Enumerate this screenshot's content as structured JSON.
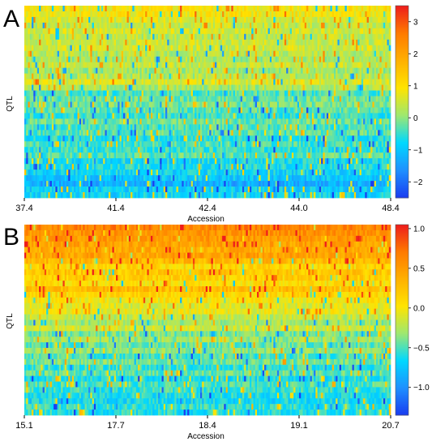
{
  "chart_data": [
    {
      "type": "heatmap",
      "panel": "A",
      "xlabel": "Accession",
      "ylabel": "QTL",
      "x_tick_labels": [
        "37.4",
        "41.4",
        "42.4",
        "44.0",
        "48.4"
      ],
      "colorbar": {
        "range": [
          -2.5,
          3.5
        ],
        "ticks": [
          3,
          2,
          1,
          0,
          -1,
          -2
        ],
        "tick_labels": [
          "3",
          "2",
          "1",
          "0",
          "−1",
          "−2"
        ]
      },
      "rows": 34,
      "columns": 200,
      "row_mean_values": [
        0.9,
        0.85,
        0.6,
        0.4,
        0.55,
        0.35,
        0.45,
        0.5,
        0.3,
        0.2,
        0.4,
        0.15,
        0.3,
        0.6,
        0.25,
        -0.4,
        -0.2,
        -0.1,
        -0.3,
        -0.5,
        -0.2,
        -0.4,
        -0.3,
        -0.6,
        -0.4,
        -0.5,
        -0.3,
        -0.7,
        -0.6,
        -0.8,
        -1.0,
        -1.3,
        -0.9,
        -0.8
      ],
      "colormap": [
        "#1a3cf0",
        "#1e90ff",
        "#00d8ff",
        "#9ee870",
        "#ffe400",
        "#ffb000",
        "#ff7a00",
        "#ee1c1c"
      ]
    },
    {
      "type": "heatmap",
      "panel": "B",
      "xlabel": "Accession",
      "ylabel": "QTL",
      "x_tick_labels": [
        "15.1",
        "17.7",
        "18.4",
        "19.1",
        "20.7"
      ],
      "colorbar": {
        "range": [
          -1.35,
          1.05
        ],
        "ticks": [
          1.0,
          0.5,
          0.0,
          -0.5,
          -1.0
        ],
        "tick_labels": [
          "1.0",
          "0.5",
          "0.0",
          "−0.5",
          "−1.0"
        ]
      },
      "rows": 34,
      "columns": 200,
      "row_mean_values": [
        0.65,
        0.55,
        0.5,
        0.45,
        0.4,
        0.45,
        0.3,
        0.1,
        0.2,
        0.15,
        0.05,
        0.3,
        0.1,
        0.0,
        -0.1,
        -0.05,
        -0.2,
        -0.3,
        -0.15,
        -0.4,
        -0.3,
        -0.45,
        -0.35,
        -0.5,
        -0.4,
        -0.55,
        -0.45,
        -0.6,
        -0.5,
        -0.55,
        -0.6,
        -0.65,
        -0.55,
        -0.6
      ],
      "colormap": [
        "#1a3cf0",
        "#1e90ff",
        "#00d8ff",
        "#9ee870",
        "#ffe400",
        "#ffb000",
        "#ff7a00",
        "#ee1c1c"
      ]
    }
  ],
  "panels": {
    "a": {
      "letter": "A"
    },
    "b": {
      "letter": "B"
    }
  }
}
